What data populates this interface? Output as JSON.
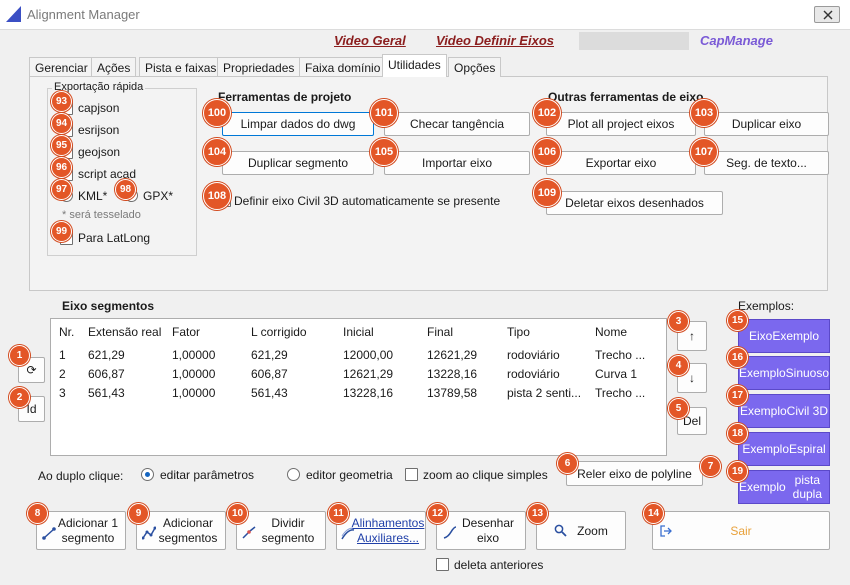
{
  "window": {
    "title": "Alignment Manager"
  },
  "header": {
    "video_geral": "Video Geral",
    "video_definir_eixos": "Video Definir Eixos",
    "capmanage": "CapManage"
  },
  "tabs": [
    "Gerenciar",
    "Ações",
    "Pista e faixas",
    "Propriedades",
    "Faixa domínio",
    "Utilidades",
    "Opções"
  ],
  "active_tab": "Utilidades",
  "quick_export": {
    "title": "Exportação rápida",
    "items": [
      "capjson",
      "esrijson",
      "geojson",
      "script acad"
    ],
    "kml": "KML*",
    "gpx": "GPX*",
    "note": "* será tesselado",
    "latlong": "Para LatLong"
  },
  "project_tools": {
    "title": "Ferramentas de projeto",
    "clear_dwg": "Limpar dados do dwg",
    "check_tangency": "Checar tangência",
    "duplicate_segment": "Duplicar segmento",
    "import_axis": "Importar eixo",
    "define_civil3d": "Definir eixo Civil 3D automaticamente se presente"
  },
  "other_tools": {
    "title": "Outras ferramentas de eixo",
    "plot_all": "Plot all project eixos",
    "duplicate_axis": "Duplicar eixo",
    "export_axis": "Exportar eixo",
    "seg_text": "Seg. de texto...",
    "delete_drawn": "Deletar eixos desenhados"
  },
  "segments": {
    "title": "Eixo segmentos",
    "columns": [
      "Nr.",
      "Extensão real",
      "Fator",
      "L corrigido",
      "Inicial",
      "Final",
      "Tipo",
      "Nome"
    ],
    "rows": [
      [
        "1",
        "621,29",
        "1,00000",
        "621,29",
        "12000,00",
        "12621,29",
        "rodoviário",
        "Trecho ..."
      ],
      [
        "2",
        "606,87",
        "1,00000",
        "606,87",
        "12621,29",
        "13228,16",
        "rodoviário",
        "Curva 1"
      ],
      [
        "3",
        "561,43",
        "1,00000",
        "561,43",
        "13228,16",
        "13789,58",
        "pista 2 senti...",
        "Trecho ..."
      ]
    ]
  },
  "side_buttons": {
    "refresh": "⟳",
    "id": "Id",
    "up": "↑",
    "down": "↓",
    "del": "Del"
  },
  "examples": {
    "title": "Exemplos:",
    "items": [
      [
        "Eixo",
        "Exemplo"
      ],
      [
        "Exemplo",
        "Sinuoso"
      ],
      [
        "Exemplo",
        "Civil 3D"
      ],
      [
        "Exemplo",
        "Espiral"
      ],
      [
        "Exemplo",
        "pista dupla"
      ]
    ]
  },
  "double_click": {
    "label": "Ao duplo clique:",
    "edit_params": "editar parâmetros",
    "edit_geometry": "editor geometria",
    "zoom_single": "zoom ao clique simples",
    "selected": "editar parâmetros"
  },
  "reload_polyline": "Reler eixo de polyline",
  "bottom_buttons": {
    "add_one": [
      "Adicionar 1",
      "segmento"
    ],
    "add_many": [
      "Adicionar",
      "segmentos"
    ],
    "split": [
      "Dividir",
      "segmento"
    ],
    "aux": [
      "Alinhamentos",
      "Auxiliares..."
    ],
    "draw": [
      "Desenhar",
      "eixo"
    ],
    "zoom": "Zoom",
    "exit": "Sair"
  },
  "delete_previous": "deleta anteriores",
  "badges": [
    "1",
    "2",
    "3",
    "4",
    "5",
    "6",
    "7",
    "8",
    "9",
    "10",
    "11",
    "12",
    "13",
    "14",
    "15",
    "16",
    "17",
    "18",
    "19",
    "93",
    "94",
    "95",
    "96",
    "97",
    "98",
    "99",
    "100",
    "101",
    "102",
    "103",
    "104",
    "105",
    "106",
    "107",
    "108",
    "109"
  ],
  "colors": {
    "accent_purple": "#7b68ee",
    "badge_orange": "#e35627",
    "link_red": "#8b1e1e",
    "exit_orange": "#e8a13a"
  }
}
